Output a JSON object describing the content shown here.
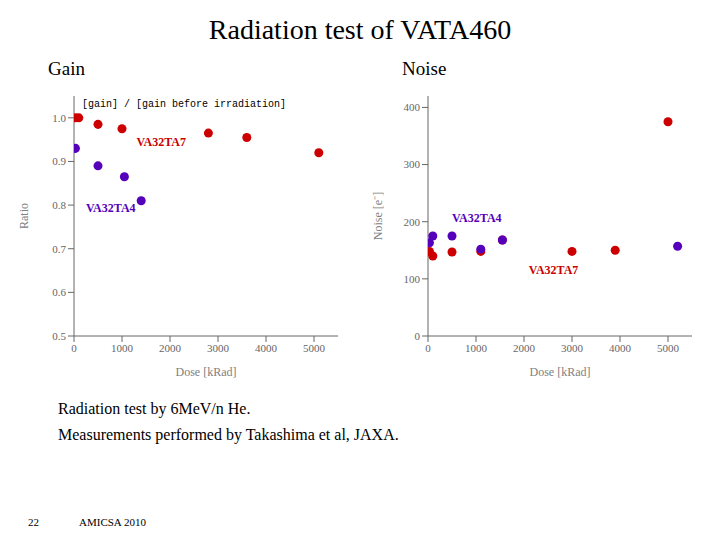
{
  "title": "Radiation test of VATA460",
  "subtitle": [
    "Radiation test by 6MeV/n He.",
    "Measurements performed by Takashima et al, JAXA."
  ],
  "footer": [
    "22",
    "AMICSA 2010"
  ],
  "chart_data": [
    {
      "type": "scatter",
      "title": "Gain",
      "xlabel": "Dose [kRad]",
      "ylabel": "Ratio",
      "annotation": "[gain] / [gain before irradiation]",
      "xlim": [
        0,
        5500
      ],
      "ylim": [
        0.5,
        1.05
      ],
      "xticks": [
        0,
        1000,
        2000,
        3000,
        4000,
        5000
      ],
      "yticks": [
        0.5,
        0.6,
        0.7,
        0.8,
        0.9,
        {
          "value": 1.0,
          "label": "1.0"
        }
      ],
      "grid": false,
      "series": [
        {
          "name": "VA32TA7",
          "color": "#cc0000",
          "x": [
            30,
            100,
            500,
            1000,
            2800,
            3600,
            5100
          ],
          "values": [
            1.0,
            1.0,
            0.985,
            0.975,
            0.965,
            0.955,
            0.92
          ],
          "label_x": 1300,
          "label_y": 0.935
        },
        {
          "name": "VA32TA4",
          "color": "#5500bb",
          "x": [
            30,
            500,
            1050,
            1400
          ],
          "values": [
            0.93,
            0.89,
            0.865,
            0.81
          ],
          "label_x": 250,
          "label_y": 0.785
        }
      ]
    },
    {
      "type": "scatter",
      "title": "Noise",
      "xlabel": "Dose [kRad]",
      "ylabel": "Noise [e⁻]",
      "xlim": [
        0,
        5500
      ],
      "ylim": [
        0,
        420
      ],
      "xticks": [
        0,
        1000,
        2000,
        3000,
        4000,
        5000
      ],
      "yticks": [
        0,
        100,
        200,
        300,
        400
      ],
      "grid": false,
      "series": [
        {
          "name": "VA32TA7",
          "color": "#cc0000",
          "x": [
            30,
            100,
            500,
            1100,
            1550,
            3000,
            3900,
            5000
          ],
          "values": [
            148,
            140,
            147,
            148,
            168,
            148,
            150,
            375
          ],
          "label_x": 2100,
          "label_y": 108
        },
        {
          "name": "VA32TA4",
          "color": "#5500bb",
          "x": [
            30,
            100,
            500,
            1100,
            1550,
            5200
          ],
          "values": [
            163,
            175,
            175,
            152,
            168,
            157
          ],
          "label_x": 500,
          "label_y": 200
        }
      ]
    }
  ]
}
